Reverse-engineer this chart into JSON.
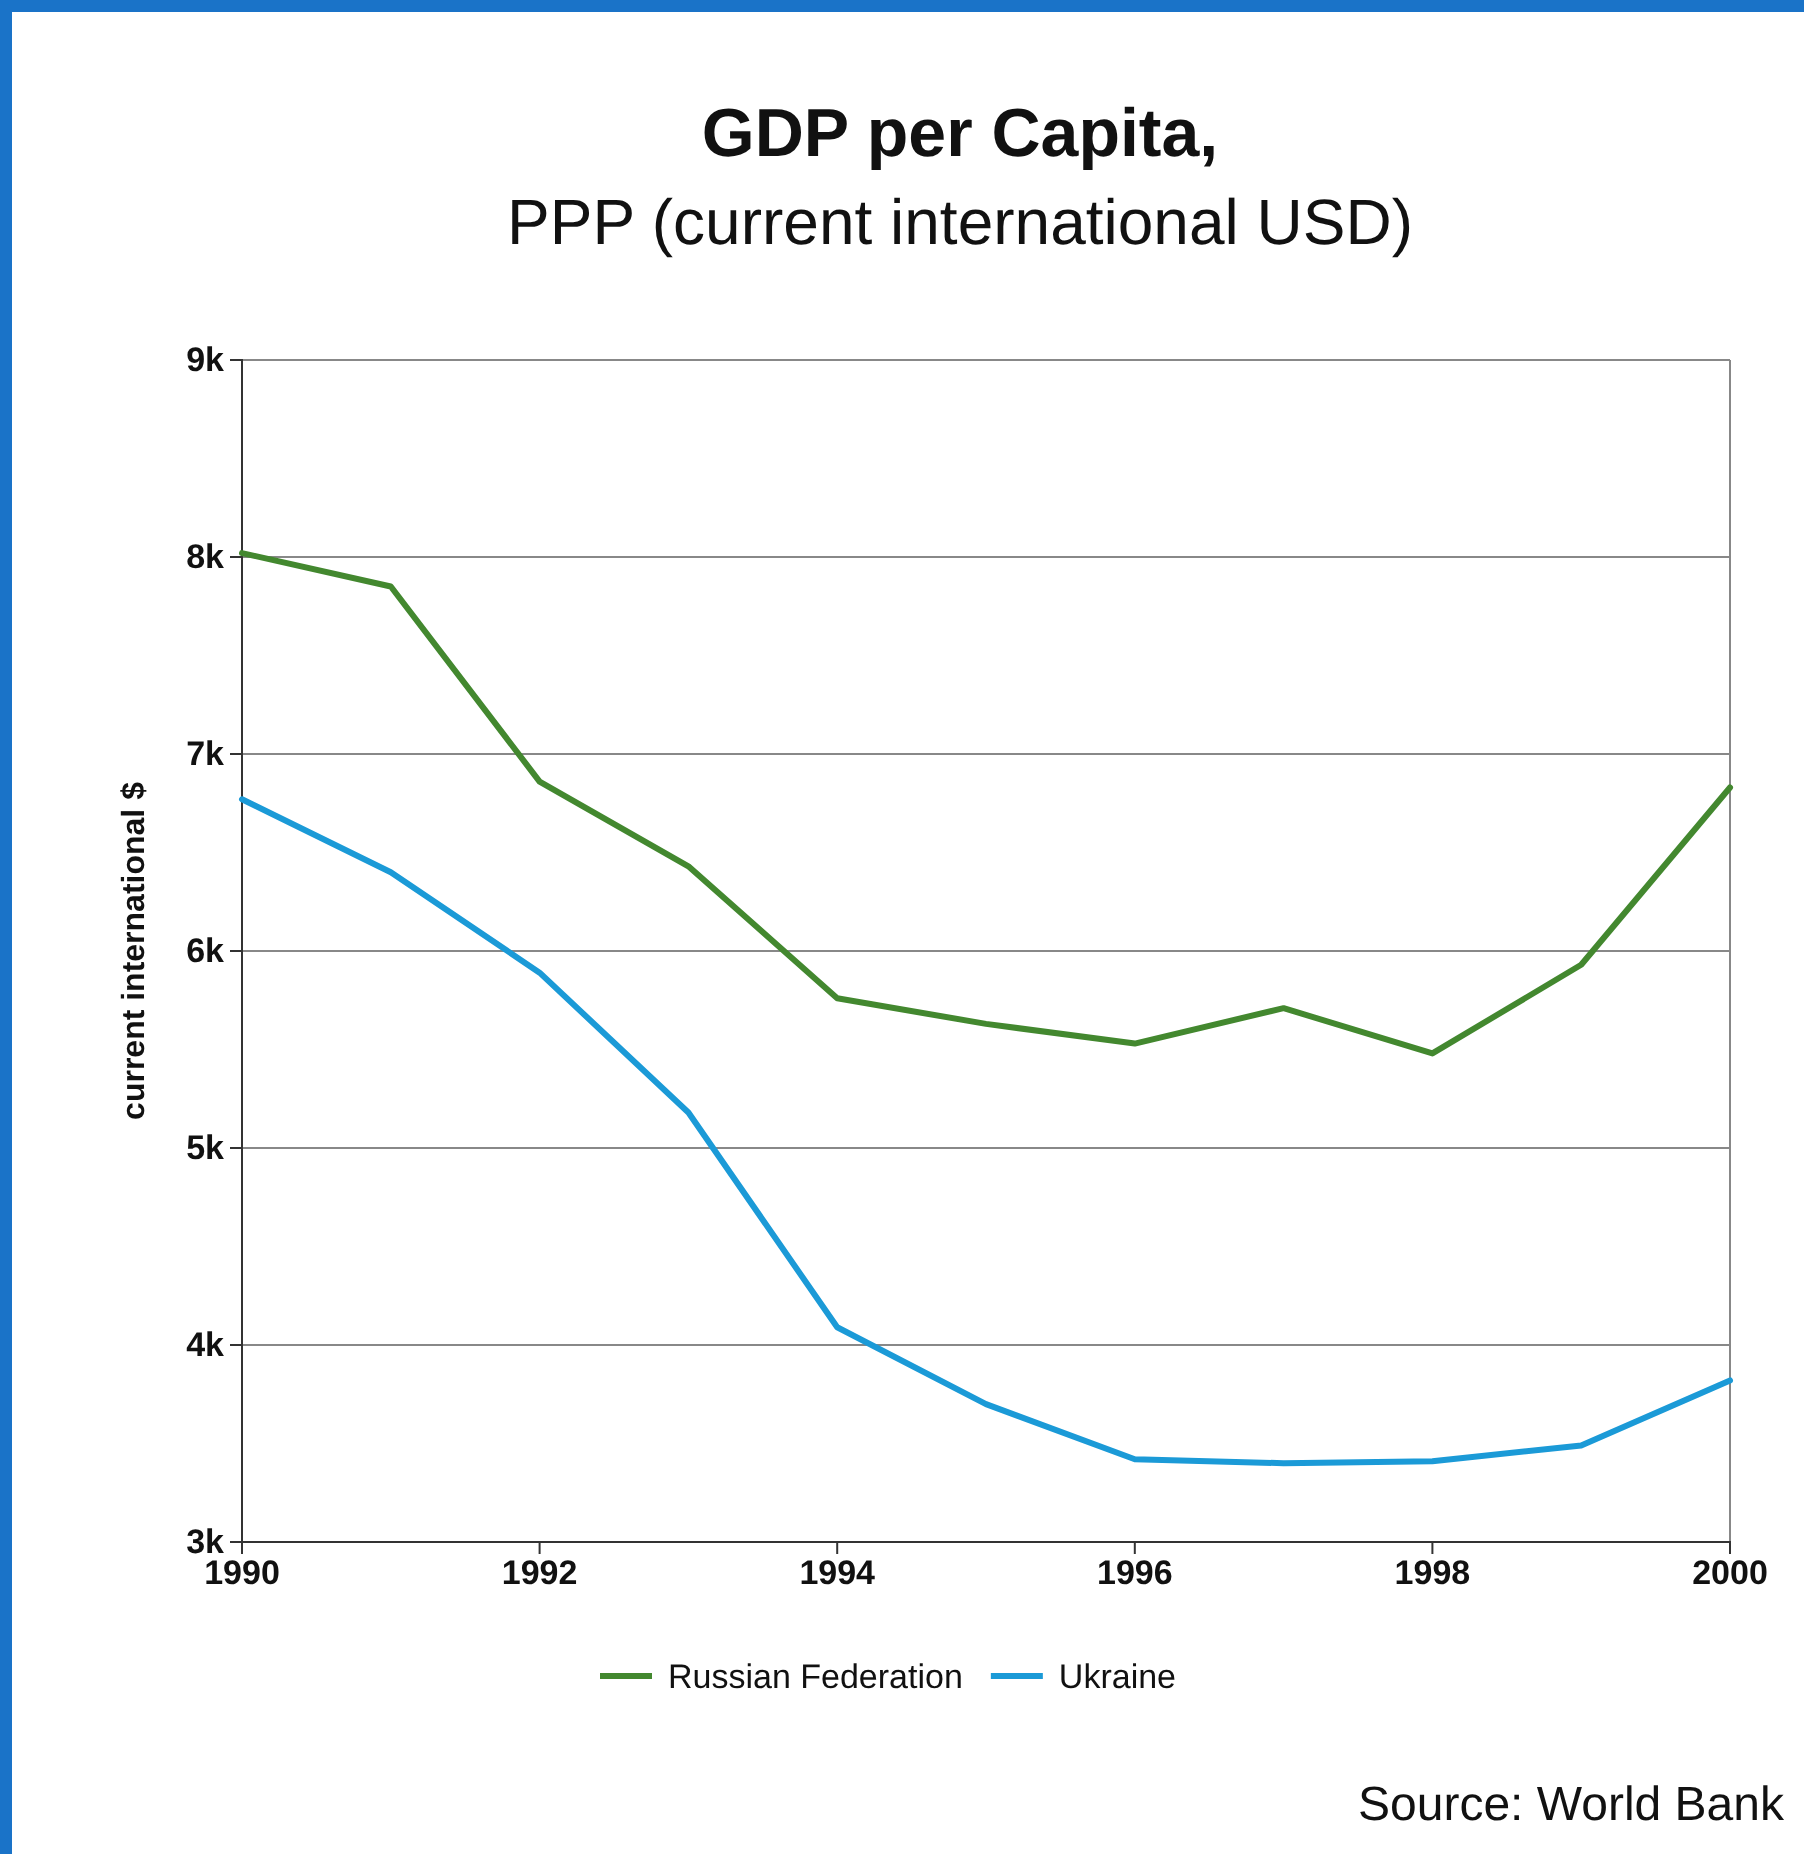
{
  "chart_data": {
    "type": "line",
    "title": "GDP per Capita,",
    "subtitle": "PPP (current international USD)",
    "ylabel": "current international $",
    "x": [
      1990,
      1991,
      1992,
      1993,
      1994,
      1995,
      1996,
      1997,
      1998,
      1999,
      2000
    ],
    "series": [
      {
        "name": "Russian Federation",
        "color": "#43882f",
        "values": [
          8020,
          7850,
          6860,
          6430,
          5760,
          5630,
          5530,
          5710,
          5480,
          5930,
          6830
        ]
      },
      {
        "name": "Ukraine",
        "color": "#1b9ad7",
        "values": [
          6770,
          6400,
          5890,
          5180,
          4090,
          3700,
          3420,
          3400,
          3410,
          3490,
          3820
        ]
      }
    ],
    "xlim": [
      1990,
      2000
    ],
    "xticks": [
      1990,
      1992,
      1994,
      1996,
      1998,
      2000
    ],
    "ylim": [
      3000,
      9000
    ],
    "yticks": [
      {
        "value": 3000,
        "label": "3k"
      },
      {
        "value": 4000,
        "label": "4k"
      },
      {
        "value": 5000,
        "label": "5k"
      },
      {
        "value": 6000,
        "label": "6k"
      },
      {
        "value": 7000,
        "label": "7k"
      },
      {
        "value": 8000,
        "label": "8k"
      },
      {
        "value": 9000,
        "label": "9k"
      }
    ],
    "grid": "y",
    "legend": "bottom",
    "marker": "none",
    "line_style": "solid",
    "annotations": [
      "Source: World Bank"
    ]
  }
}
